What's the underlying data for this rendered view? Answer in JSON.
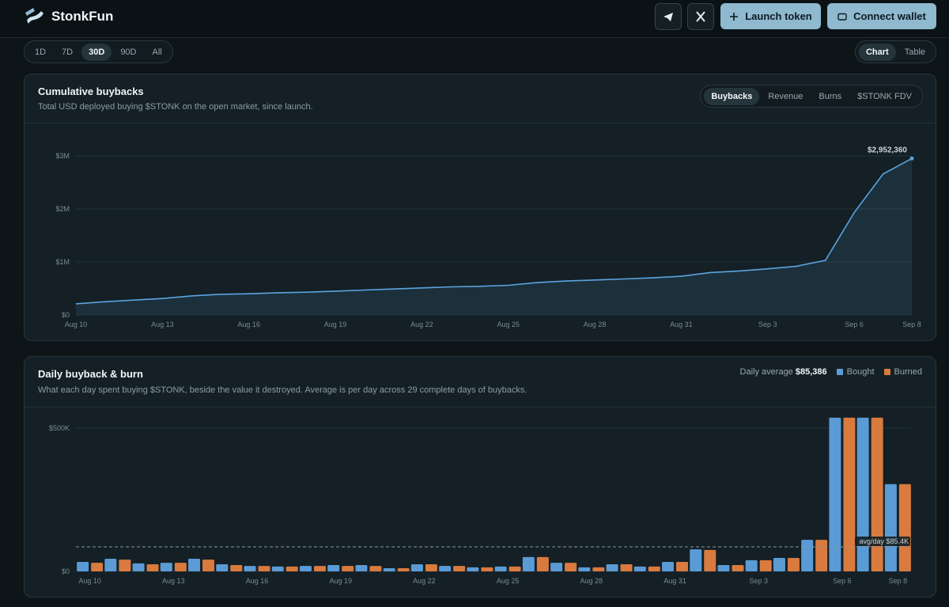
{
  "header": {
    "brand": "StonkFun",
    "launch": "Launch token",
    "connect": "Connect wallet"
  },
  "range_tabs": {
    "options": [
      "1D",
      "7D",
      "30D",
      "90D",
      "All"
    ],
    "active": 2
  },
  "view_tabs": {
    "options": [
      "Chart",
      "Table"
    ],
    "active": 0
  },
  "chart_data": [
    {
      "type": "line",
      "title": "Cumulative buybacks",
      "subtitle": "Total USD deployed buying $STONK on the open market, since launch.",
      "metric_tabs": {
        "options": [
          "Buybacks",
          "Revenue",
          "Burns",
          "$STONK FDV"
        ],
        "active": 0
      },
      "categories": [
        "Aug 10",
        null,
        null,
        "Aug 13",
        null,
        null,
        "Aug 16",
        null,
        null,
        "Aug 19",
        null,
        null,
        "Aug 22",
        null,
        null,
        "Aug 25",
        null,
        null,
        "Aug 28",
        null,
        null,
        "Aug 31",
        null,
        null,
        "Sep 3",
        null,
        null,
        "Sep 6",
        null,
        "Sep 8"
      ],
      "values": [
        210000,
        250000,
        280000,
        310000,
        360000,
        390000,
        400000,
        420000,
        430000,
        450000,
        470000,
        490000,
        510000,
        530000,
        540000,
        560000,
        610000,
        640000,
        660000,
        680000,
        700000,
        730000,
        800000,
        830000,
        870000,
        920000,
        1030000,
        1930000,
        2660000,
        2952360
      ],
      "value_labels": [
        null,
        null,
        null,
        null,
        null,
        null,
        null,
        null,
        null,
        null,
        null,
        null,
        null,
        null,
        null,
        null,
        null,
        null,
        null,
        null,
        null,
        null,
        null,
        null,
        null,
        null,
        null,
        null,
        null,
        "$2,952,360"
      ],
      "color": "#5ba3e0",
      "ylim": [
        0,
        3300000
      ],
      "yticks": [
        {
          "value": 0,
          "label": "$0"
        },
        {
          "value": 1000000,
          "label": "$1M"
        },
        {
          "value": 2000000,
          "label": "$2M"
        },
        {
          "value": 3000000,
          "label": "$3M"
        }
      ],
      "grid": true
    },
    {
      "type": "bar",
      "title": "Daily buyback & burn",
      "subtitle": "What each day spent buying $STONK, beside the value it destroyed. Average is per day across 29 complete days of buybacks.",
      "categories": [
        "Aug 10",
        null,
        null,
        "Aug 13",
        null,
        null,
        "Aug 16",
        null,
        null,
        "Aug 19",
        null,
        null,
        "Aug 22",
        null,
        null,
        "Aug 25",
        null,
        null,
        "Aug 28",
        null,
        null,
        "Aug 31",
        null,
        null,
        "Sep 3",
        null,
        null,
        "Sep 6",
        null,
        "Sep 8"
      ],
      "series": [
        {
          "name": "Bought",
          "color": "#5b9bd5",
          "values": [
            33000,
            44000,
            28000,
            30000,
            44000,
            25000,
            19000,
            17000,
            19000,
            22000,
            22000,
            11000,
            25000,
            19000,
            14000,
            17000,
            50000,
            30000,
            14000,
            25000,
            17000,
            33000,
            77000,
            22000,
            39000,
            47000,
            110000,
            536000,
            536000,
            304000
          ]
        },
        {
          "name": "Burned",
          "color": "#d97a3f",
          "values": [
            30000,
            41000,
            25000,
            30000,
            41000,
            22000,
            19000,
            17000,
            19000,
            19000,
            19000,
            11000,
            25000,
            19000,
            14000,
            17000,
            50000,
            30000,
            14000,
            25000,
            17000,
            33000,
            75000,
            22000,
            39000,
            47000,
            110000,
            536000,
            536000,
            304000
          ]
        }
      ],
      "average": {
        "caption": "Daily average",
        "value": 85386,
        "label": "$85,386",
        "line_label": "avg/day $85.4K"
      },
      "ylim": [
        0,
        560000
      ],
      "yticks": [
        {
          "value": 0,
          "label": "$0"
        },
        {
          "value": 500000,
          "label": "$500K"
        }
      ],
      "grid": true
    }
  ]
}
